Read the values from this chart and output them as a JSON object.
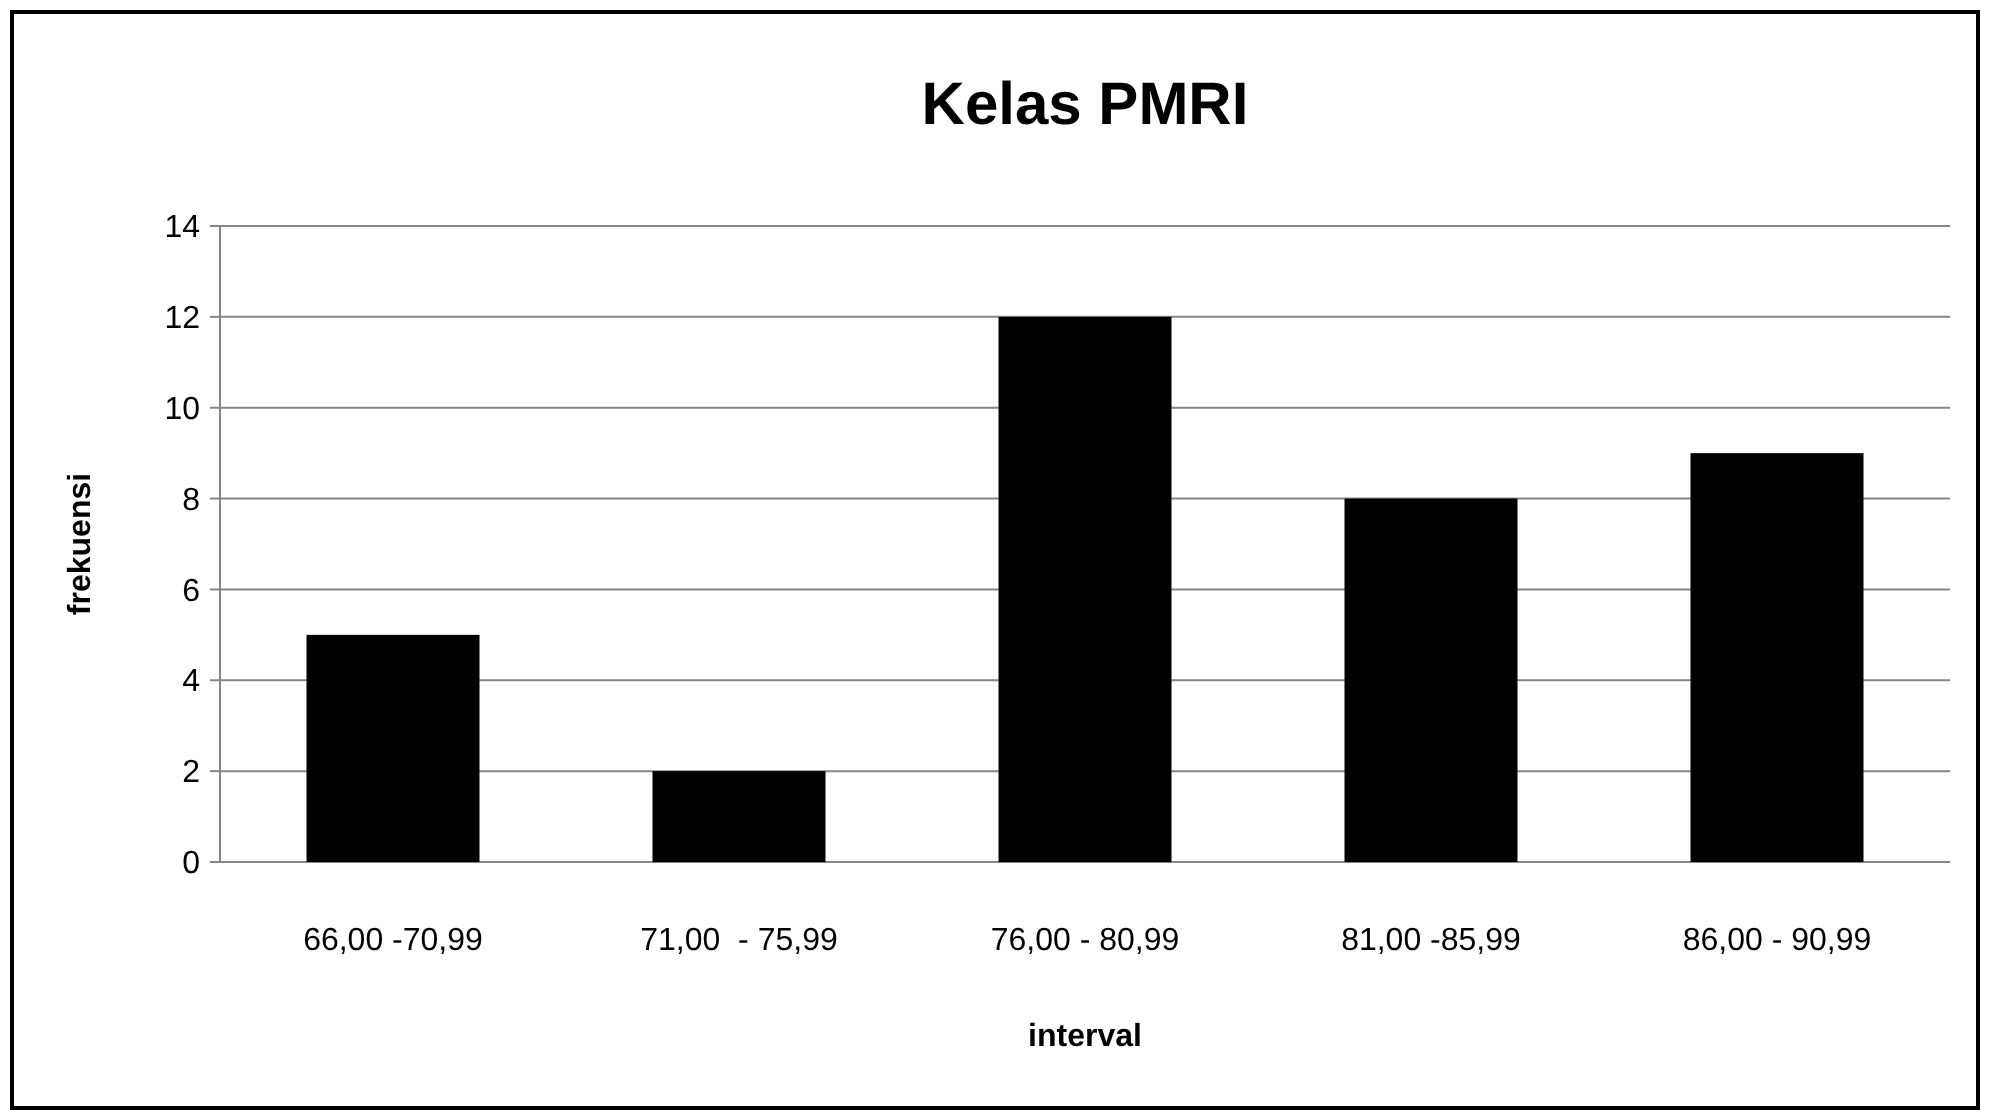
{
  "chart_data": {
    "type": "bar",
    "title": "Kelas PMRI",
    "xlabel": "interval",
    "ylabel": "frekuensi",
    "categories": [
      "66,00 -70,99",
      "71,00  - 75,99",
      "76,00 - 80,99",
      "81,00 -85,99",
      "86,00 - 90,99"
    ],
    "values": [
      5,
      2,
      12,
      8,
      9
    ],
    "color": "#000000",
    "ylim": [
      0,
      14
    ],
    "yticks": [
      0,
      2,
      4,
      6,
      8,
      10,
      12,
      14
    ],
    "grid": "y"
  }
}
